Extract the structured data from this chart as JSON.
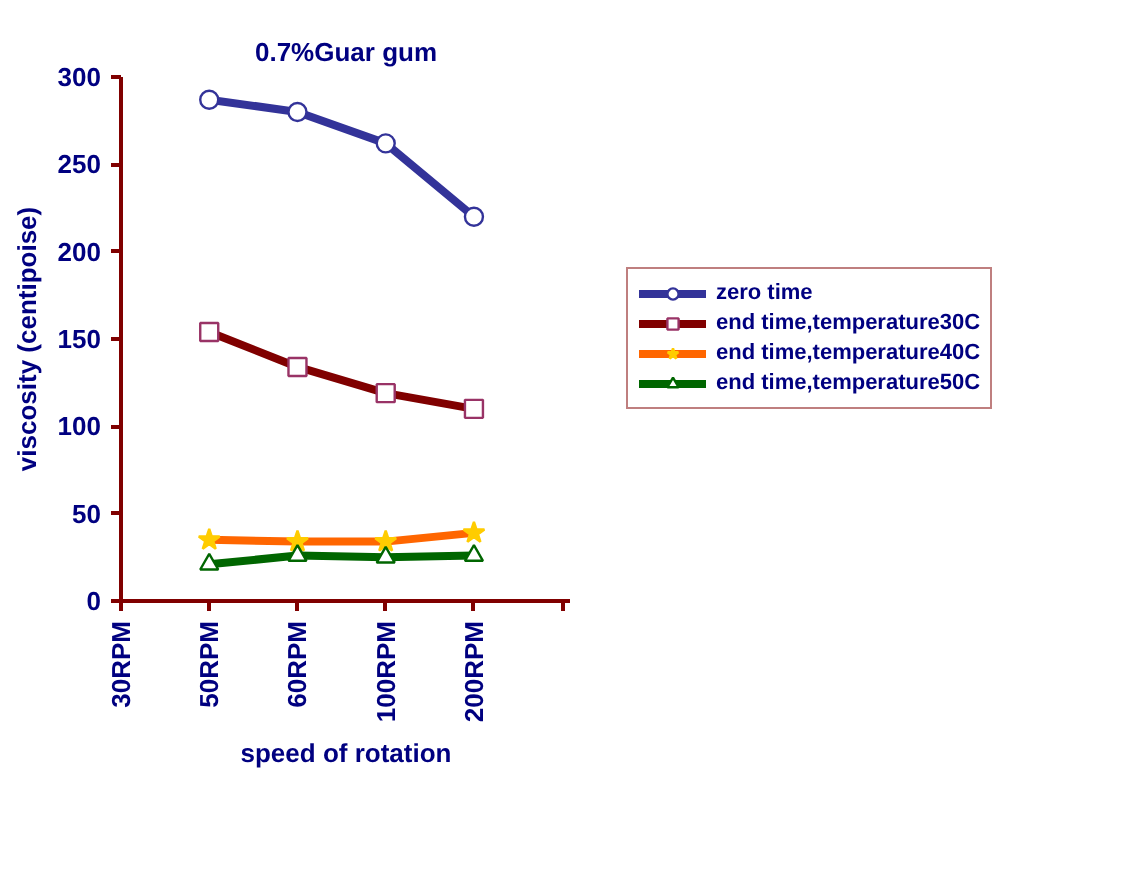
{
  "chart_data": {
    "type": "line",
    "title": "0.7%Guar gum",
    "xlabel": "speed of rotation",
    "ylabel": "viscosity (centipoise)",
    "categories": [
      "30RPM",
      "50RPM",
      "60RPM",
      "100RPM",
      "200RPM",
      null
    ],
    "ylim": [
      0,
      300
    ],
    "yticks": [
      0,
      50,
      100,
      150,
      200,
      250,
      300
    ],
    "legend": "right",
    "series": [
      {
        "name": "zero time",
        "color": "#333399",
        "marker": "circle",
        "values": [
          null,
          287,
          280,
          262,
          220,
          null
        ]
      },
      {
        "name": "end time,temperature30C",
        "color": "#800000",
        "marker": "square",
        "values": [
          null,
          154,
          134,
          119,
          110,
          null
        ]
      },
      {
        "name": "end time,temperature40C",
        "color": "#ff6600",
        "marker": "star",
        "values": [
          null,
          35,
          34,
          34,
          39,
          null
        ]
      },
      {
        "name": "end time,temperature50C",
        "color": "#006600",
        "marker": "triangle",
        "values": [
          null,
          21,
          26,
          25,
          26,
          null
        ]
      }
    ]
  }
}
